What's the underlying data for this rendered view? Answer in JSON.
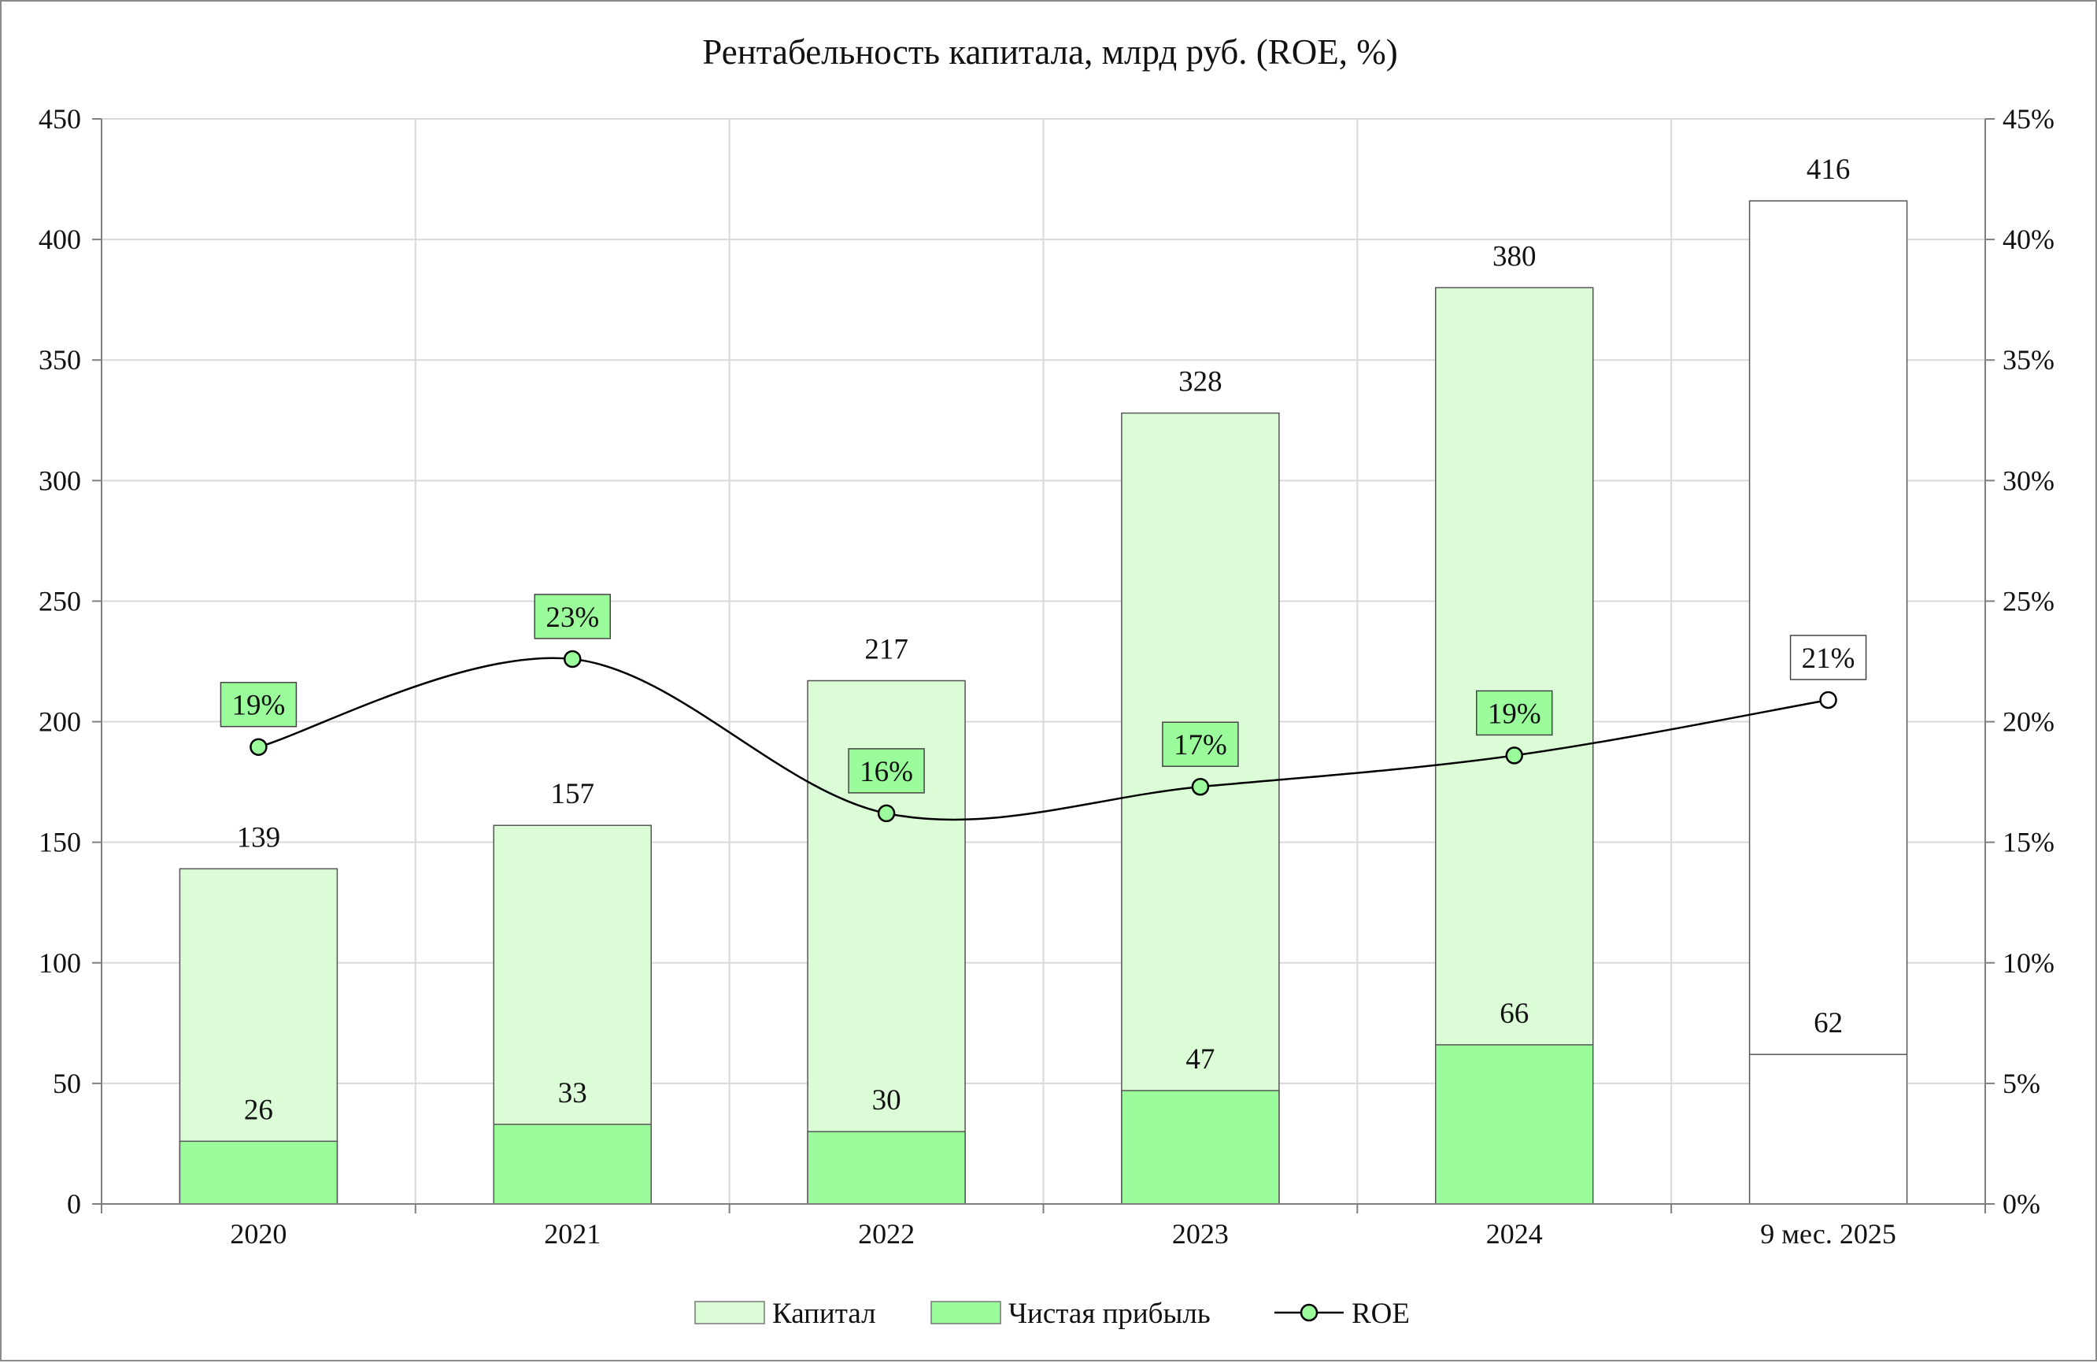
{
  "chart_data": {
    "type": "bar",
    "title": "Рентабельность капитала, млрд руб. (ROE, %)",
    "categories": [
      "2020",
      "2021",
      "2022",
      "2023",
      "2024",
      "9 мес. 2025"
    ],
    "series": [
      {
        "name": "Капитал",
        "values": [
          139,
          157,
          217,
          328,
          380,
          416
        ],
        "color": "#dcfcd8",
        "kind": "bar"
      },
      {
        "name": "Чистая прибыль",
        "values": [
          26,
          33,
          30,
          47,
          66,
          62
        ],
        "color": "#9bfc9b",
        "kind": "bar"
      },
      {
        "name": "ROE",
        "values": [
          19,
          23,
          16,
          17,
          19,
          21
        ],
        "color": "#9bfc9b",
        "kind": "line",
        "axis": "right"
      }
    ],
    "bar_labels": {
      "capital": [
        "139",
        "157",
        "217",
        "328",
        "380",
        "416"
      ],
      "profit": [
        "26",
        "33",
        "30",
        "47",
        "66",
        "62"
      ],
      "roe": [
        "19%",
        "23%",
        "16%",
        "17%",
        "19%",
        "21%"
      ]
    },
    "roe_plotted": [
      18.95,
      22.6,
      16.2,
      17.3,
      18.6,
      20.9
    ],
    "last_period_unfilled": true,
    "ylim": [
      0,
      450
    ],
    "y2lim": [
      0,
      45
    ],
    "y_ticks": [
      "0",
      "50",
      "100",
      "150",
      "200",
      "250",
      "300",
      "350",
      "400",
      "450"
    ],
    "y2_ticks": [
      "0%",
      "5%",
      "10%",
      "15%",
      "20%",
      "25%",
      "30%",
      "35%",
      "40%",
      "45%"
    ],
    "grid": true,
    "legend": "bottom",
    "legend_items": [
      "Капитал",
      "Чистая прибыль",
      "ROE"
    ],
    "colors": {
      "gridline": "#d9d9d9",
      "axis": "#808080",
      "bar_border": "#555555",
      "line": "#000000",
      "empty_bar": "#ffffff"
    }
  }
}
